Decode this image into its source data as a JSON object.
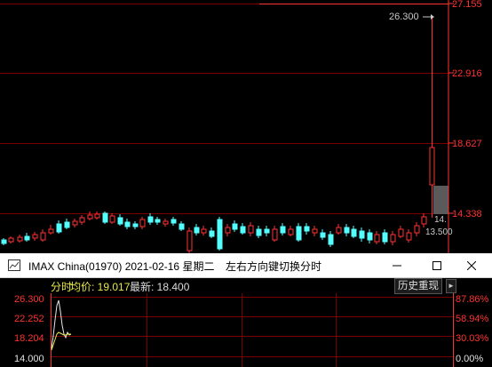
{
  "main_chart": {
    "price_labels": [
      "27.155",
      "22.916",
      "18.627",
      "14.338"
    ],
    "high_marker": "26.300",
    "last_price_label": "14.",
    "low_price_label": "13.500",
    "colors": {
      "up": "#ff3232",
      "down": "#54ffff",
      "grid": "#7a0000",
      "axis_text": "#ff3232",
      "marker_text": "#c8c8c8"
    }
  },
  "popup": {
    "title": "IMAX China(01970) 2021-02-16 星期二",
    "hint": "左右方向键切换分时",
    "buttons": {
      "minimize": "minimize-icon",
      "maximize": "maximize-icon",
      "close": "close-icon"
    },
    "info": {
      "label": "分时",
      "avg": "均价: 19.017",
      "last": "最新: 18.400"
    },
    "history_button": "历史重现",
    "left_axis": [
      "26.300",
      "22.252",
      "18.204",
      "14.000"
    ],
    "right_axis": [
      "87.86%",
      "58.94%",
      "30.03%",
      "0.00%"
    ]
  }
}
